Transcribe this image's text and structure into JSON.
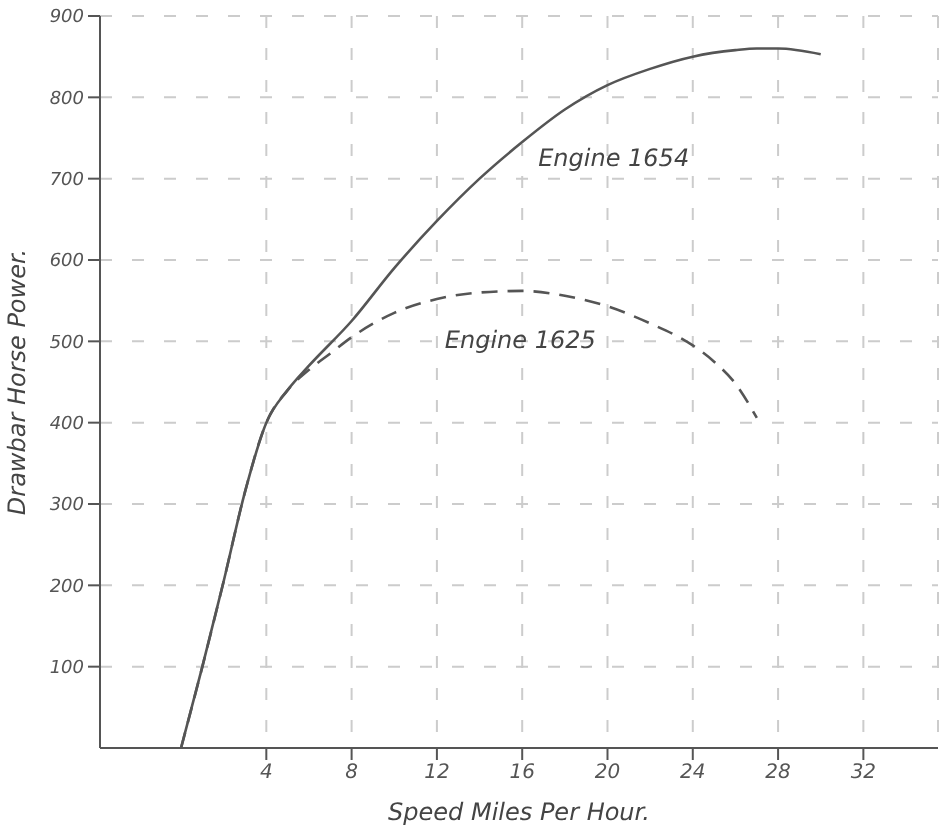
{
  "chart_data": {
    "type": "line",
    "xlabel": "Speed Miles Per Hour.",
    "ylabel": "Drawbar Horse Power.",
    "xlim": [
      -3.8,
      35.5
    ],
    "xticks": [
      4,
      8,
      12,
      16,
      20,
      24,
      28,
      32
    ],
    "ylim": [
      0,
      900
    ],
    "yticks": [
      100,
      200,
      300,
      400,
      500,
      600,
      700,
      800,
      900
    ],
    "grid": true,
    "marker": "none",
    "series": [
      {
        "color": "#555555",
        "line_style": "solid",
        "x": [
          0,
          1,
          2,
          3,
          4,
          5,
          6,
          8,
          10,
          12,
          14,
          16,
          18,
          20,
          22,
          24,
          26,
          27,
          28,
          30
        ],
        "values": [
          0,
          100,
          205,
          315,
          400,
          440,
          470,
          525,
          590,
          648,
          700,
          745,
          785,
          815,
          835,
          850,
          858,
          860,
          860,
          853
        ]
      },
      {
        "color": "#555555",
        "line_style": "dashed",
        "x": [
          0,
          1,
          2,
          3,
          4,
          5,
          6,
          7,
          8,
          10,
          12,
          14,
          16,
          18,
          20,
          22,
          24,
          25,
          26,
          27
        ],
        "values": [
          0,
          100,
          205,
          315,
          400,
          440,
          465,
          485,
          505,
          535,
          552,
          560,
          562,
          556,
          543,
          522,
          495,
          475,
          448,
          406
        ]
      }
    ],
    "annotations": [
      {
        "text": "Engine 1654",
        "x": 16,
        "y": 745
      },
      {
        "text": "Engine 1625",
        "x": 18,
        "y": 556
      }
    ]
  }
}
